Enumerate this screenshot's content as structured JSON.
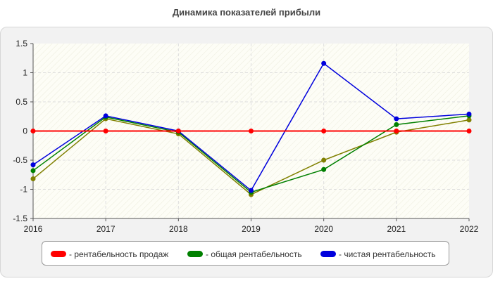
{
  "title": "Динамика показателей прибыли",
  "chart_data": {
    "type": "line",
    "x": [
      "2016",
      "2017",
      "2018",
      "2019",
      "2020",
      "2021",
      "2022"
    ],
    "y_ticks": [
      "1.5",
      "1",
      "0.5",
      "0",
      "-0.5",
      "-1",
      "-1.5"
    ],
    "ylim": [
      -1.5,
      1.5
    ],
    "grid": true,
    "legend_position": "bottom",
    "series": [
      {
        "name": "рентабельность продаж",
        "legend_label": "- рентабельность продаж",
        "color": "#ff0000",
        "values": [
          0.0,
          0.0,
          0.0,
          0.0,
          0.0,
          0.0,
          0.0
        ]
      },
      {
        "name": "общая рентабельность",
        "legend_label": "- общая рентабельность",
        "color": "#008000",
        "values": [
          -0.68,
          0.24,
          -0.02,
          -1.05,
          -0.66,
          0.11,
          0.26
        ]
      },
      {
        "name": "чистая рентабельность",
        "legend_label": "- чистая рентабельность",
        "color": "#0000dd",
        "values": [
          -0.58,
          0.26,
          0.0,
          -1.02,
          1.16,
          0.21,
          0.29
        ]
      },
      {
        "name": "",
        "legend_label": "",
        "color": "#808000",
        "values": [
          -0.82,
          0.21,
          -0.05,
          -1.09,
          -0.5,
          -0.02,
          0.19
        ]
      }
    ]
  }
}
